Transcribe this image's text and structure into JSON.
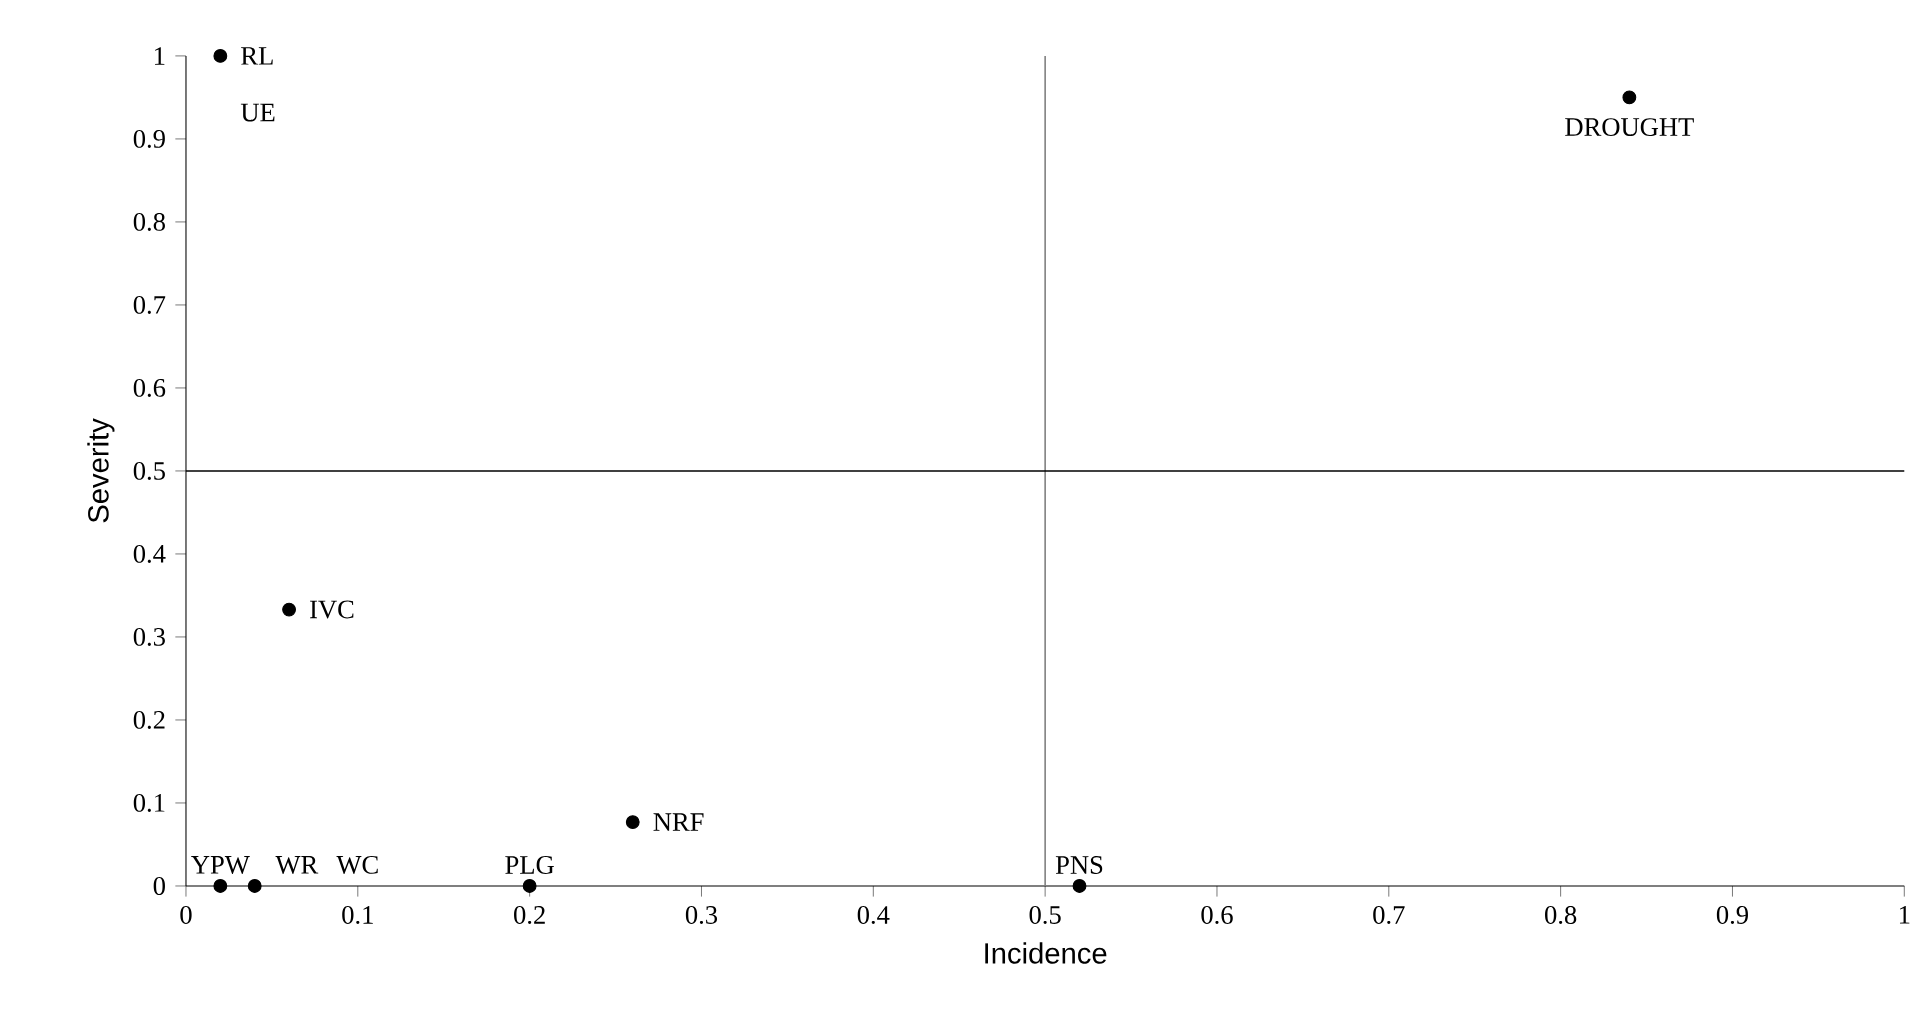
{
  "chart_data": {
    "type": "scatter",
    "xlabel": "Incidence",
    "ylabel": "Severity",
    "x": [
      0.02,
      0.84,
      0.06,
      0.26,
      0.02,
      0.04,
      0.2,
      0.52
    ],
    "values": [
      1,
      0.95,
      0.333,
      0.077,
      0,
      0,
      0,
      0
    ],
    "color": "#000000",
    "marker": "circle",
    "grid": false,
    "legend": false,
    "xlim": [
      0,
      1
    ],
    "ylim": [
      0,
      1
    ],
    "xticks": [
      0,
      0.1,
      0.2,
      0.3,
      0.4,
      0.5,
      0.6,
      0.7,
      0.8,
      0.9,
      1
    ],
    "yticks": [
      0,
      0.1,
      0.2,
      0.3,
      0.4,
      0.5,
      0.6,
      0.7,
      0.8,
      0.9,
      1
    ],
    "ref_lines": [
      {
        "axis": "x",
        "value": 0.5,
        "color": "#808080"
      },
      {
        "axis": "y",
        "value": 0.5,
        "color": "#000000"
      }
    ],
    "annotations": [
      {
        "text": "RL",
        "x": 0.02,
        "y": 1
      },
      {
        "text": "UE",
        "x": 0.02,
        "y": 1
      },
      {
        "text": "DROUGHT",
        "x": 0.84,
        "y": 0.95
      },
      {
        "text": "IVC",
        "x": 0.06,
        "y": 0.333
      },
      {
        "text": "NRF",
        "x": 0.26,
        "y": 0.077
      },
      {
        "text": "YPW",
        "x": 0.02,
        "y": 0
      },
      {
        "text": "WR",
        "x": 0.04,
        "y": 0
      },
      "WC",
      {
        "text": "PLG",
        "x": 0.2,
        "y": 0
      },
      {
        "text": "PNS",
        "x": 0.52,
        "y": 0
      }
    ]
  }
}
